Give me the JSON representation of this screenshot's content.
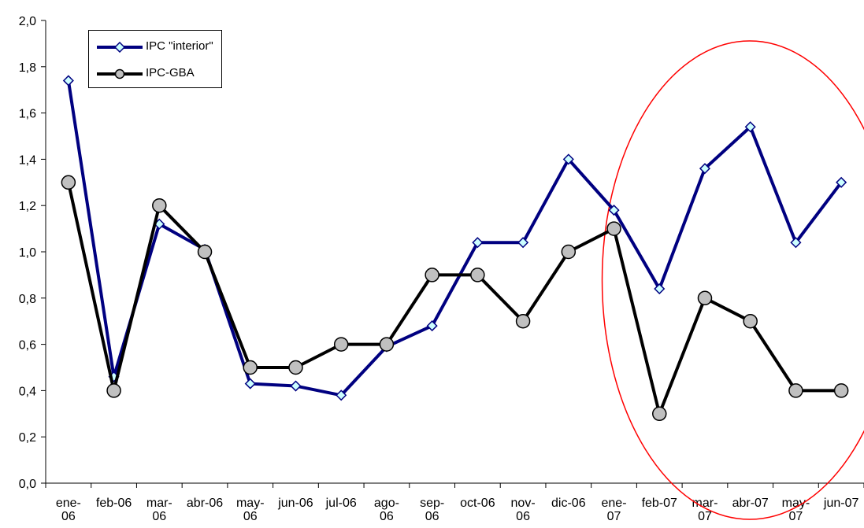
{
  "chart_data": {
    "type": "line",
    "title": "",
    "xlabel": "",
    "ylabel": "",
    "ylim": [
      0,
      2
    ],
    "yticks": [
      "0,0",
      "0,2",
      "0,4",
      "0,6",
      "0,8",
      "1,0",
      "1,2",
      "1,4",
      "1,6",
      "1,8",
      "2,0"
    ],
    "categories": [
      [
        "ene-",
        "06"
      ],
      [
        "feb-06"
      ],
      [
        "mar-",
        "06"
      ],
      [
        "abr-06"
      ],
      [
        "may-",
        "06"
      ],
      [
        "jun-06"
      ],
      [
        "jul-06"
      ],
      [
        "ago-",
        "06"
      ],
      [
        "sep-",
        "06"
      ],
      [
        "oct-06"
      ],
      [
        "nov-",
        "06"
      ],
      [
        "dic-06"
      ],
      [
        "ene-",
        "07"
      ],
      [
        "feb-07"
      ],
      [
        "mar-",
        "07"
      ],
      [
        "abr-07"
      ],
      [
        "may-",
        "07"
      ],
      [
        "jun-07"
      ]
    ],
    "series": [
      {
        "name": "IPC \"interior\"",
        "color": "#000080",
        "marker": "diamond",
        "values": [
          1.74,
          0.46,
          1.12,
          1.01,
          0.43,
          0.42,
          0.38,
          0.59,
          0.68,
          1.04,
          1.04,
          1.4,
          1.18,
          0.84,
          1.36,
          1.54,
          1.04,
          1.3
        ]
      },
      {
        "name": "IPC-GBA",
        "color": "#000000",
        "marker": "circle",
        "values": [
          1.3,
          0.4,
          1.2,
          1.0,
          0.5,
          0.5,
          0.6,
          0.6,
          0.9,
          0.9,
          0.7,
          1.0,
          1.1,
          0.3,
          0.8,
          0.7,
          0.4,
          0.4
        ]
      }
    ],
    "grid": false,
    "legend_position": "top-left",
    "annotation": {
      "shape": "ellipse",
      "color": "#ff0000",
      "range_categories": [
        "ene-07",
        "jun-07"
      ]
    }
  }
}
